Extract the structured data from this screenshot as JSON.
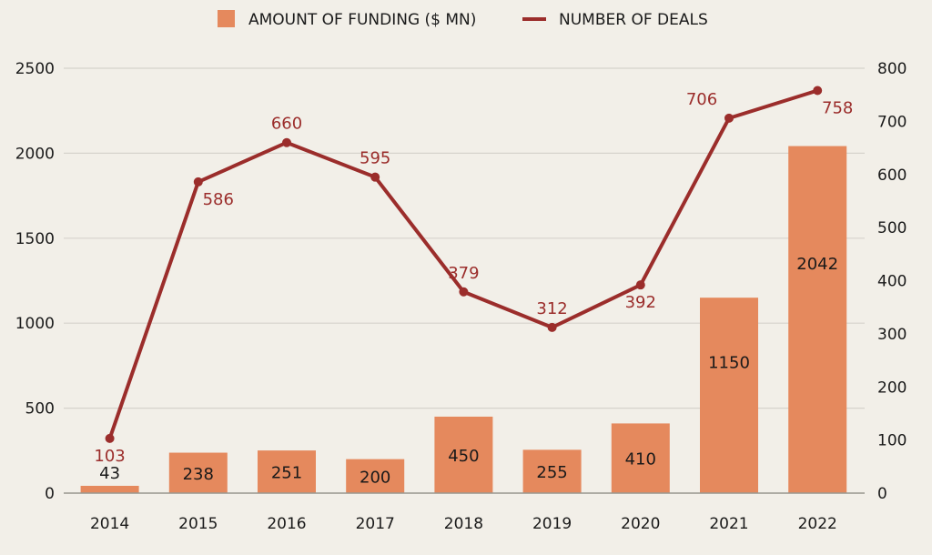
{
  "chart_data": {
    "type": "bar",
    "categories": [
      "2014",
      "2015",
      "2016",
      "2017",
      "2018",
      "2019",
      "2020",
      "2021",
      "2022"
    ],
    "series": [
      {
        "name": "AMOUNT OF FUNDING ($ MN)",
        "type": "bar",
        "axis": "left",
        "values": [
          43,
          238,
          251,
          200,
          450,
          255,
          410,
          1150,
          2042
        ],
        "labels": [
          "43",
          "238",
          "251",
          "200",
          "450",
          "255",
          "410",
          "1150",
          "2042"
        ],
        "color": "#e5895d"
      },
      {
        "name": "NUMBER OF DEALS",
        "type": "line",
        "axis": "right",
        "values": [
          103,
          586,
          660,
          595,
          379,
          312,
          392,
          706,
          758
        ],
        "labels": [
          "103",
          "586",
          "660",
          "595",
          "379",
          "312",
          "392",
          "706",
          "758"
        ],
        "color": "#9b2d2b"
      }
    ],
    "y_left": {
      "ylim": [
        0,
        2500
      ],
      "ticks": [
        "0",
        "500",
        "1000",
        "1500",
        "2000",
        "2500"
      ]
    },
    "y_right": {
      "ylim": [
        0,
        800
      ],
      "ticks": [
        "0",
        "100",
        "200",
        "300",
        "400",
        "500",
        "600",
        "700",
        "800"
      ]
    },
    "grid": true,
    "legend": "top-center",
    "colors": {
      "background": "#f2efe8",
      "grid": "#d6d3cc",
      "axis_text": "#1a1a1a"
    }
  }
}
